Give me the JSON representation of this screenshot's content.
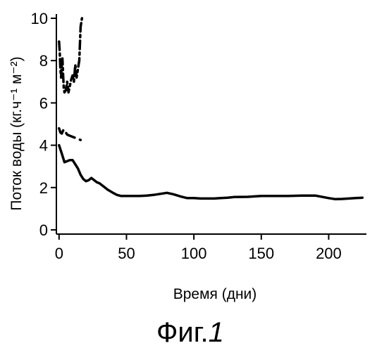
{
  "chart_data": {
    "type": "line",
    "title": "",
    "xlabel": "Время (дни)",
    "ylabel": "Поток воды (кг.ч⁻¹ м⁻²)",
    "xlim": [
      -2,
      228
    ],
    "ylim": [
      -0.2,
      10.2
    ],
    "xticks": [
      0,
      50,
      100,
      150,
      200
    ],
    "yticks": [
      0,
      2,
      4,
      6,
      8,
      10
    ],
    "grid": false,
    "series": [
      {
        "style": "solid",
        "x": [
          0,
          2,
          4,
          6,
          8,
          10,
          12,
          14,
          16,
          18,
          20,
          22,
          24,
          26,
          28,
          30,
          33,
          36,
          40,
          43,
          46,
          50,
          55,
          60,
          65,
          70,
          75,
          80,
          85,
          90,
          95,
          100,
          105,
          110,
          115,
          120,
          125,
          130,
          140,
          150,
          160,
          170,
          180,
          190,
          200,
          205,
          210,
          215,
          220,
          225
        ],
        "y": [
          4.0,
          3.6,
          3.2,
          3.25,
          3.3,
          3.3,
          3.1,
          2.9,
          2.6,
          2.4,
          2.3,
          2.35,
          2.45,
          2.35,
          2.25,
          2.2,
          2.05,
          1.9,
          1.75,
          1.65,
          1.6,
          1.6,
          1.6,
          1.6,
          1.62,
          1.65,
          1.7,
          1.75,
          1.68,
          1.58,
          1.5,
          1.5,
          1.48,
          1.48,
          1.48,
          1.5,
          1.52,
          1.55,
          1.56,
          1.6,
          1.6,
          1.6,
          1.62,
          1.62,
          1.5,
          1.45,
          1.46,
          1.48,
          1.5,
          1.52
        ]
      },
      {
        "style": "long-dash",
        "x": [
          0,
          1,
          2,
          3,
          4,
          5,
          6,
          8,
          10,
          12,
          14,
          16
        ],
        "y": [
          4.8,
          4.6,
          4.55,
          4.7,
          4.55,
          4.6,
          4.5,
          4.45,
          4.4,
          4.35,
          4.3,
          4.25
        ]
      },
      {
        "style": "dash-dot",
        "x": [
          0,
          0.5,
          1,
          1.5,
          2,
          2.5,
          3,
          3.5,
          4,
          5,
          6,
          7,
          8,
          9,
          10,
          11,
          12,
          13,
          14,
          15,
          16,
          17
        ],
        "y": [
          8.9,
          8.4,
          7.6,
          7.2,
          7.9,
          8.1,
          7.3,
          6.7,
          6.5,
          6.6,
          7.0,
          6.5,
          6.8,
          7.1,
          7.3,
          7.0,
          7.8,
          7.2,
          7.6,
          8.0,
          9.6,
          10.0
        ]
      }
    ]
  },
  "figure_caption": "Фиг.",
  "figure_number": "1"
}
